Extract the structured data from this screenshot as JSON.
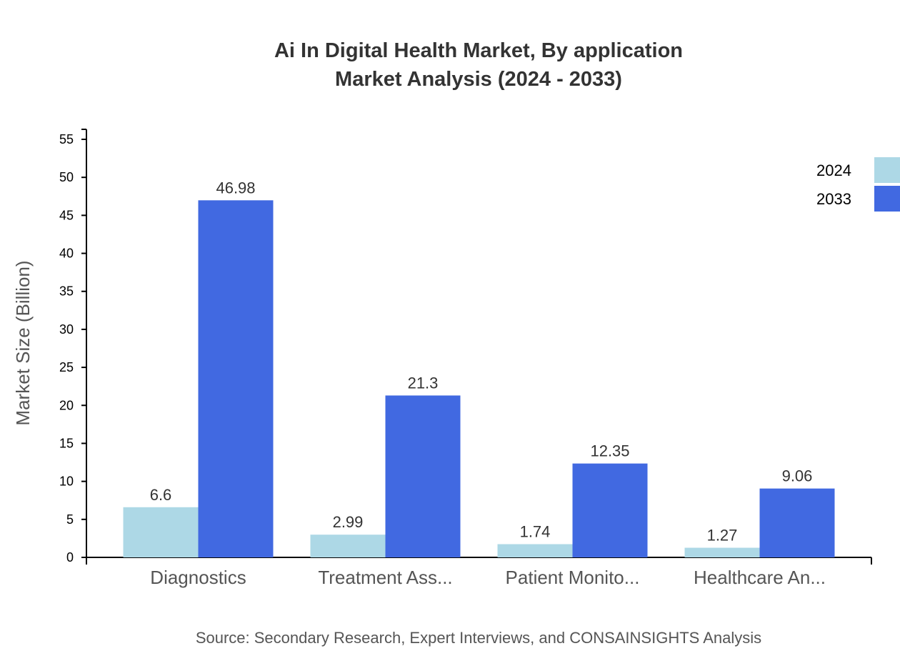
{
  "chart_data": {
    "type": "bar",
    "title": "Ai In Digital Health Market, By application",
    "subtitle": "Market Analysis (2024 - 2033)",
    "xlabel": "",
    "ylabel": "Market Size (Billion)",
    "ylim": [
      0,
      55
    ],
    "yticks": [
      0,
      5,
      10,
      15,
      20,
      25,
      30,
      35,
      40,
      45,
      50,
      55
    ],
    "categories": [
      "Diagnostics",
      "Treatment Ass...",
      "Patient Monito...",
      "Healthcare An..."
    ],
    "series": [
      {
        "name": "2024",
        "color": "#add8e6",
        "values": [
          6.6,
          2.99,
          1.74,
          1.27
        ]
      },
      {
        "name": "2033",
        "color": "#4169e1",
        "values": [
          46.98,
          21.3,
          12.35,
          9.06
        ]
      }
    ],
    "legend_position": "top-right",
    "grid": false,
    "source": "Source: Secondary Research, Expert Interviews, and CONSAINSIGHTS Analysis"
  }
}
